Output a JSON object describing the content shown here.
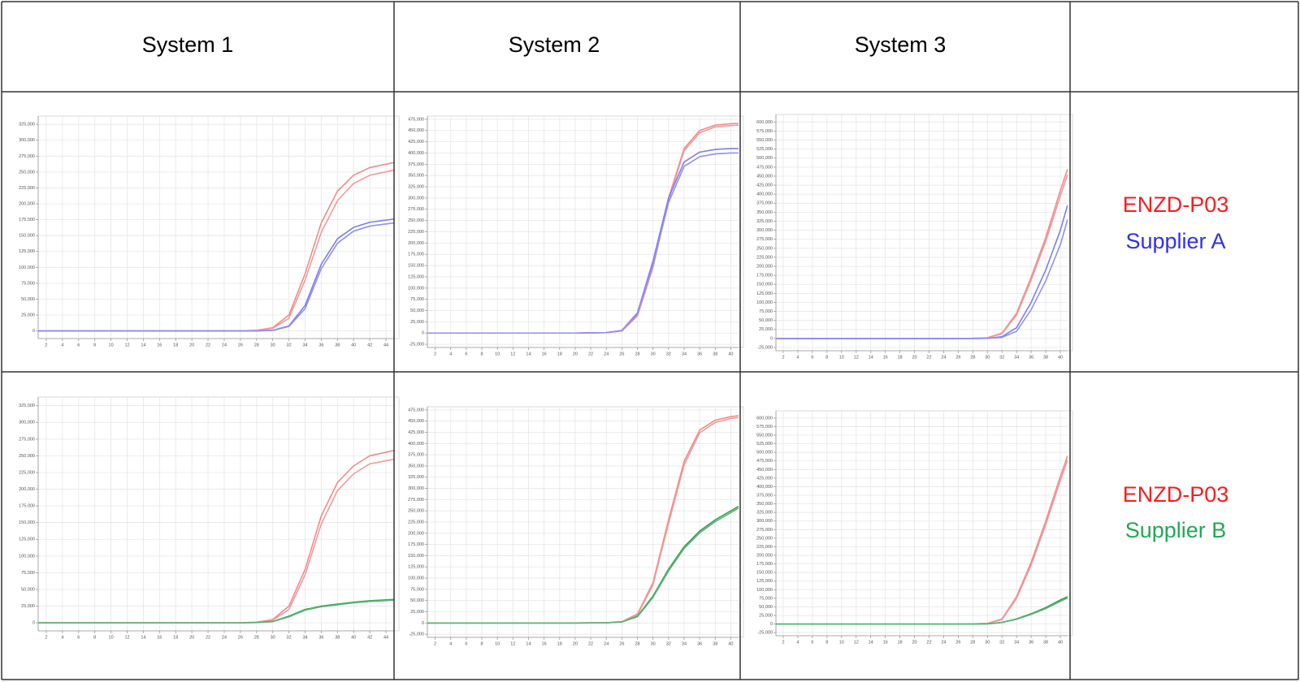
{
  "table": {
    "columns": [
      "System 1",
      "System 2",
      "System 3"
    ],
    "axes": [
      {
        "xlim": [
          1,
          45
        ],
        "xticks": [
          2,
          4,
          6,
          8,
          10,
          12,
          14,
          16,
          18,
          20,
          22,
          24,
          26,
          28,
          30,
          32,
          34,
          36,
          38,
          40,
          42,
          44
        ],
        "x": [
          1,
          10,
          20,
          26,
          28,
          30,
          32,
          34,
          36,
          38,
          40,
          42,
          45
        ],
        "ylim": [
          -12000,
          338000
        ],
        "yticks": [
          0,
          {
            "value": 25000,
            "label": "25,000"
          },
          {
            "value": 50000,
            "label": "50,000"
          },
          {
            "value": 75000,
            "label": "75,000"
          },
          {
            "value": 100000,
            "label": "100,000"
          },
          {
            "value": 125000,
            "label": "125,000"
          },
          {
            "value": 150000,
            "label": "150,000"
          },
          {
            "value": 175000,
            "label": "175,000"
          },
          {
            "value": 200000,
            "label": "200,000"
          },
          {
            "value": 225000,
            "label": "225,000"
          },
          {
            "value": 250000,
            "label": "250,000"
          },
          {
            "value": 275000,
            "label": "275,000"
          },
          {
            "value": 300000,
            "label": "300,000"
          },
          {
            "value": 325000,
            "label": "325,000"
          }
        ]
      },
      {
        "xlim": [
          1,
          41
        ],
        "xticks": [
          2,
          4,
          6,
          8,
          10,
          12,
          14,
          16,
          18,
          20,
          22,
          24,
          26,
          28,
          30,
          32,
          34,
          36,
          38,
          40
        ],
        "x": [
          1,
          10,
          20,
          24,
          26,
          28,
          30,
          32,
          34,
          36,
          38,
          40,
          41
        ],
        "ylim": [
          -32000,
          482000
        ],
        "yticks": [
          {
            "value": -25000,
            "label": "-25,000"
          },
          0,
          {
            "value": 25000,
            "label": "25,000"
          },
          {
            "value": 50000,
            "label": "50,000"
          },
          {
            "value": 75000,
            "label": "75,000"
          },
          {
            "value": 100000,
            "label": "100,000"
          },
          {
            "value": 125000,
            "label": "125,000"
          },
          {
            "value": 150000,
            "label": "150,000"
          },
          {
            "value": 175000,
            "label": "175,000"
          },
          {
            "value": 200000,
            "label": "200,000"
          },
          {
            "value": 225000,
            "label": "225,000"
          },
          {
            "value": 250000,
            "label": "250,000"
          },
          {
            "value": 275000,
            "label": "275,000"
          },
          {
            "value": 300000,
            "label": "300,000"
          },
          {
            "value": 325000,
            "label": "325,000"
          },
          {
            "value": 350000,
            "label": "350,000"
          },
          {
            "value": 375000,
            "label": "375,000"
          },
          {
            "value": 400000,
            "label": "400,000"
          },
          {
            "value": 425000,
            "label": "425,000"
          },
          {
            "value": 450000,
            "label": "450,000"
          },
          {
            "value": 475000,
            "label": "475,000"
          }
        ]
      },
      {
        "xlim": [
          1,
          41
        ],
        "xticks": [
          2,
          4,
          6,
          8,
          10,
          12,
          14,
          16,
          18,
          20,
          22,
          24,
          26,
          28,
          30,
          32,
          34,
          36,
          38,
          40
        ],
        "x": [
          1,
          10,
          20,
          24,
          26,
          28,
          30,
          32,
          34,
          36,
          38,
          40,
          41
        ],
        "ylim": [
          -34000,
          621000
        ],
        "yticks": [
          {
            "value": -25000,
            "label": "-25,000"
          },
          0,
          {
            "value": 25000,
            "label": "25,000"
          },
          {
            "value": 50000,
            "label": "50,000"
          },
          {
            "value": 75000,
            "label": "75,000"
          },
          {
            "value": 100000,
            "label": "100,000"
          },
          {
            "value": 125000,
            "label": "125,000"
          },
          {
            "value": 150000,
            "label": "150,000"
          },
          {
            "value": 175000,
            "label": "175,000"
          },
          {
            "value": 200000,
            "label": "200,000"
          },
          {
            "value": 225000,
            "label": "225,000"
          },
          {
            "value": 250000,
            "label": "250,000"
          },
          {
            "value": 275000,
            "label": "275,000"
          },
          {
            "value": 300000,
            "label": "300,000"
          },
          {
            "value": 325000,
            "label": "325,000"
          },
          {
            "value": 350000,
            "label": "350,000"
          },
          {
            "value": 375000,
            "label": "375,000"
          },
          {
            "value": 400000,
            "label": "400,000"
          },
          {
            "value": 425000,
            "label": "425,000"
          },
          {
            "value": 450000,
            "label": "450,000"
          },
          {
            "value": 475000,
            "label": "475,000"
          },
          {
            "value": 500000,
            "label": "500,000"
          },
          {
            "value": 525000,
            "label": "525,000"
          },
          {
            "value": 550000,
            "label": "550,000"
          },
          {
            "value": 575000,
            "label": "575,000"
          },
          {
            "value": 600000,
            "label": "600,000"
          }
        ]
      }
    ],
    "rows": [
      {
        "legend": [
          {
            "text": "ENZD-P03",
            "color": "#ff1a1a"
          },
          {
            "text": "Supplier A",
            "color": "#2f2ff2"
          }
        ],
        "charts": [
          {
            "type": "line",
            "series": [
              {
                "color": "#f08a8a",
                "values": [
                  0,
                  0,
                  0,
                  0,
                  1000,
                  5000,
                  25000,
                  90000,
                  170000,
                  220000,
                  245000,
                  257000,
                  265000
                ]
              },
              {
                "color": "#f29a9a",
                "values": [
                  0,
                  0,
                  0,
                  0,
                  800,
                  4000,
                  20000,
                  80000,
                  155000,
                  205000,
                  232000,
                  245000,
                  253000
                ]
              },
              {
                "color": "#7d7df0",
                "values": [
                  0,
                  0,
                  0,
                  0,
                  0,
                  1000,
                  8000,
                  40000,
                  105000,
                  145000,
                  163000,
                  171000,
                  176000
                ]
              },
              {
                "color": "#9090f2",
                "values": [
                  0,
                  0,
                  0,
                  0,
                  0,
                  800,
                  7000,
                  35000,
                  98000,
                  138000,
                  157000,
                  165000,
                  170000
                ]
              }
            ]
          },
          {
            "type": "line",
            "series": [
              {
                "color": "#f08a8a",
                "values": [
                  0,
                  0,
                  0,
                  1000,
                  5000,
                  40000,
                  150000,
                  300000,
                  410000,
                  450000,
                  462000,
                  465000,
                  466000
                ]
              },
              {
                "color": "#f29a9a",
                "values": [
                  0,
                  0,
                  0,
                  1000,
                  4500,
                  38000,
                  145000,
                  295000,
                  405000,
                  445000,
                  458000,
                  461000,
                  462000
                ]
              },
              {
                "color": "#7d7df0",
                "values": [
                  0,
                  0,
                  0,
                  1000,
                  6000,
                  45000,
                  160000,
                  300000,
                  380000,
                  402000,
                  408000,
                  410000,
                  410000
                ]
              },
              {
                "color": "#9090f2",
                "values": [
                  0,
                  0,
                  0,
                  1000,
                  5500,
                  42000,
                  152000,
                  290000,
                  370000,
                  392000,
                  398000,
                  400000,
                  400000
                ]
              }
            ]
          },
          {
            "type": "line",
            "series": [
              {
                "color": "#f08a8a",
                "values": [
                  0,
                  0,
                  0,
                  0,
                  0,
                  500,
                  2000,
                  15000,
                  70000,
                  170000,
                  280000,
                  410000,
                  470000
                ]
              },
              {
                "color": "#f29a9a",
                "values": [
                  0,
                  0,
                  0,
                  0,
                  0,
                  400,
                  1800,
                  13000,
                  65000,
                  162000,
                  270000,
                  395000,
                  455000
                ]
              },
              {
                "color": "#7d7df0",
                "values": [
                  0,
                  0,
                  0,
                  0,
                  0,
                  0,
                  500,
                  5000,
                  30000,
                  100000,
                  190000,
                  300000,
                  370000
                ]
              },
              {
                "color": "#9090f2",
                "values": [
                  0,
                  0,
                  0,
                  0,
                  0,
                  0,
                  400,
                  3000,
                  20000,
                  80000,
                  160000,
                  260000,
                  330000
                ]
              }
            ]
          }
        ]
      },
      {
        "legend": [
          {
            "text": "ENZD-P03",
            "color": "#ff1a1a"
          },
          {
            "text": "Supplier B",
            "color": "#22a853"
          }
        ],
        "charts": [
          {
            "type": "line",
            "series": [
              {
                "color": "#f08a8a",
                "values": [
                  0,
                  0,
                  0,
                  0,
                  1000,
                  5000,
                  25000,
                  80000,
                  160000,
                  210000,
                  235000,
                  250000,
                  258000
                ]
              },
              {
                "color": "#f29a9a",
                "values": [
                  0,
                  0,
                  0,
                  0,
                  800,
                  4000,
                  20000,
                  72000,
                  148000,
                  198000,
                  223000,
                  238000,
                  245000
                ]
              },
              {
                "color": "#3c9e5a",
                "values": [
                  0,
                  0,
                  0,
                  0,
                  500,
                  2000,
                  10000,
                  20000,
                  25000,
                  28000,
                  31000,
                  33000,
                  35000
                ]
              },
              {
                "color": "#5bb574",
                "values": [
                  0,
                  0,
                  0,
                  0,
                  400,
                  1800,
                  9000,
                  19000,
                  24000,
                  27000,
                  30000,
                  32000,
                  34000
                ]
              }
            ]
          },
          {
            "type": "line",
            "series": [
              {
                "color": "#f08a8a",
                "values": [
                  0,
                  0,
                  0,
                  500,
                  3000,
                  20000,
                  90000,
                  230000,
                  360000,
                  430000,
                  452000,
                  460000,
                  462000
                ]
              },
              {
                "color": "#f29a9a",
                "values": [
                  0,
                  0,
                  0,
                  500,
                  2800,
                  18000,
                  85000,
                  222000,
                  352000,
                  424000,
                  447000,
                  456000,
                  458000
                ]
              },
              {
                "color": "#3c9e5a",
                "values": [
                  0,
                  0,
                  0,
                  500,
                  2500,
                  15000,
                  60000,
                  120000,
                  170000,
                  205000,
                  230000,
                  250000,
                  260000
                ]
              },
              {
                "color": "#5bb574",
                "values": [
                  0,
                  0,
                  0,
                  500,
                  2300,
                  14000,
                  57000,
                  116000,
                  166000,
                  201000,
                  226000,
                  246000,
                  256000
                ]
              }
            ]
          },
          {
            "type": "line",
            "series": [
              {
                "color": "#f08a8a",
                "values": [
                  0,
                  0,
                  0,
                  0,
                  0,
                  500,
                  2000,
                  15000,
                  80000,
                  180000,
                  300000,
                  430000,
                  490000
                ]
              },
              {
                "color": "#f29a9a",
                "values": [
                  0,
                  0,
                  0,
                  0,
                  0,
                  400,
                  1800,
                  13000,
                  75000,
                  172000,
                  290000,
                  418000,
                  478000
                ]
              },
              {
                "color": "#3c9e5a",
                "values": [
                  0,
                  0,
                  0,
                  0,
                  0,
                  0,
                  500,
                  5000,
                  15000,
                  30000,
                  48000,
                  70000,
                  80000
                ]
              },
              {
                "color": "#5bb574",
                "values": [
                  0,
                  0,
                  0,
                  0,
                  0,
                  0,
                  400,
                  4500,
                  14000,
                  28000,
                  45000,
                  66000,
                  76000
                ]
              }
            ]
          }
        ]
      }
    ]
  }
}
